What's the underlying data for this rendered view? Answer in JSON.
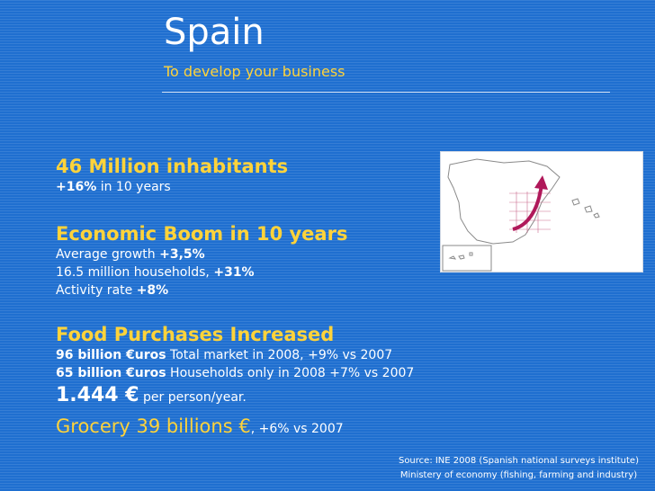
{
  "header": {
    "title": "Spain",
    "subtitle": "To develop your business"
  },
  "section_population": {
    "heading": "46 Million inhabitants",
    "line1_bold": "+16%",
    "line1_text": " in 10 years"
  },
  "section_economy": {
    "heading": "Economic Boom in 10 years",
    "growth_text": "Average growth ",
    "growth_bold": "+3,5%",
    "households_text": "16.5 million households, ",
    "households_bold": "+31%",
    "activity_text": "Activity rate ",
    "activity_bold": "+8%"
  },
  "section_food": {
    "heading": "Food Purchases Increased",
    "market_bold": "96 billion €uros",
    "market_text": " Total market in 2008, +9% vs 2007",
    "households_bold": "65 billion €uros",
    "households_text": " Households only in 2008 +7% vs 2007",
    "per_person_value": "1.444 €",
    "per_person_text": " per person/year.",
    "grocery_value": "Grocery 39 billions €",
    "grocery_text": ", +6% vs 2007"
  },
  "source": {
    "line1": "Source: INE 2008 (Spanish national surveys institute)",
    "line2": "Ministery  of economy (fishing, farming and industry)"
  },
  "colors": {
    "background": "#1f6fd0",
    "accent": "#ffd33a",
    "text": "#ffffff",
    "arrow": "#b0185a"
  },
  "map": {
    "icon": "spain-map-with-growth-arrow"
  }
}
